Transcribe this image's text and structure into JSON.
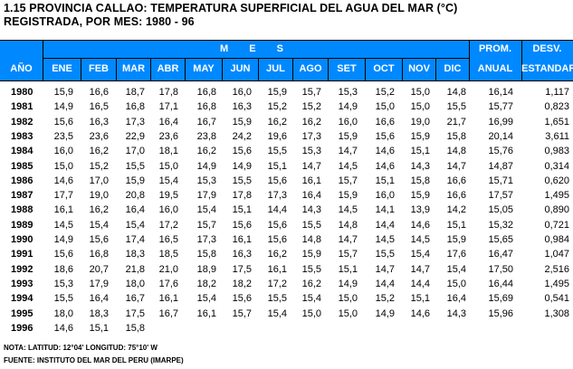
{
  "title": {
    "line1": "1.15  PROVINCIA CALLAO: TEMPERATURA SUPERFICIAL DEL AGUA DEL MAR (°C)",
    "line2": "REGISTRADA, POR MES: 1980 - 96"
  },
  "header": {
    "mes": "M E S",
    "ano": "AÑO",
    "months": [
      "ENE",
      "FEB",
      "MAR",
      "ABR",
      "MAY",
      "JUN",
      "JUL",
      "AGO",
      "SET",
      "OCT",
      "NOV",
      "DIC"
    ],
    "prom_1": "PROM.",
    "prom_2": "ANUAL",
    "desv_1": "DESV.",
    "desv_2": "ESTANDAR"
  },
  "rows": [
    {
      "year": "1980",
      "v": [
        "15,9",
        "16,6",
        "18,7",
        "17,8",
        "16,8",
        "16,0",
        "15,9",
        "15,7",
        "15,3",
        "15,2",
        "15,0",
        "14,8"
      ],
      "prom": "16,14",
      "desv": "1,117"
    },
    {
      "year": "1981",
      "v": [
        "14,9",
        "16,5",
        "16,8",
        "17,1",
        "16,8",
        "16,3",
        "15,2",
        "15,2",
        "14,9",
        "15,0",
        "15,0",
        "15,5"
      ],
      "prom": "15,77",
      "desv": "0,823"
    },
    {
      "year": "1982",
      "v": [
        "15,6",
        "16,3",
        "17,3",
        "16,4",
        "16,7",
        "15,9",
        "16,2",
        "16,2",
        "16,0",
        "16,6",
        "19,0",
        "21,7"
      ],
      "prom": "16,99",
      "desv": "1,651"
    },
    {
      "year": "1983",
      "v": [
        "23,5",
        "23,6",
        "22,9",
        "23,6",
        "23,8",
        "24,2",
        "19,6",
        "17,3",
        "15,9",
        "15,6",
        "15,9",
        "15,8"
      ],
      "prom": "20,14",
      "desv": "3,611"
    },
    {
      "year": "1984",
      "v": [
        "16,0",
        "16,2",
        "17,0",
        "18,1",
        "16,2",
        "15,6",
        "15,5",
        "15,3",
        "14,7",
        "14,6",
        "15,1",
        "14,8"
      ],
      "prom": "15,76",
      "desv": "0,983"
    },
    {
      "year": "1985",
      "v": [
        "15,0",
        "15,2",
        "15,5",
        "15,0",
        "14,9",
        "14,9",
        "15,1",
        "14,7",
        "14,5",
        "14,6",
        "14,3",
        "14,7"
      ],
      "prom": "14,87",
      "desv": "0,314"
    },
    {
      "year": "1986",
      "v": [
        "14,6",
        "17,0",
        "15,9",
        "15,4",
        "15,3",
        "15,5",
        "15,6",
        "16,1",
        "15,7",
        "15,1",
        "15,8",
        "16,6"
      ],
      "prom": "15,71",
      "desv": "0,620"
    },
    {
      "year": "1987",
      "v": [
        "17,7",
        "19,0",
        "20,8",
        "19,5",
        "17,9",
        "17,8",
        "17,3",
        "16,4",
        "15,9",
        "16,0",
        "15,9",
        "16,6"
      ],
      "prom": "17,57",
      "desv": "1,495"
    },
    {
      "year": "1988",
      "v": [
        "16,1",
        "16,2",
        "16,4",
        "16,0",
        "15,4",
        "15,1",
        "14,4",
        "14,3",
        "14,5",
        "14,1",
        "13,9",
        "14,2"
      ],
      "prom": "15,05",
      "desv": "0,890"
    },
    {
      "year": "1989",
      "v": [
        "14,5",
        "15,4",
        "15,4",
        "17,2",
        "15,7",
        "15,6",
        "15,6",
        "15,5",
        "14,8",
        "14,4",
        "14,6",
        "15,1"
      ],
      "prom": "15,32",
      "desv": "0,721"
    },
    {
      "year": "1990",
      "v": [
        "14,9",
        "15,6",
        "17,4",
        "16,5",
        "17,3",
        "16,1",
        "15,6",
        "14,8",
        "14,7",
        "14,5",
        "14,5",
        "15,9"
      ],
      "prom": "15,65",
      "desv": "0,984"
    },
    {
      "year": "1991",
      "v": [
        "15,6",
        "16,8",
        "18,3",
        "18,5",
        "15,8",
        "16,3",
        "16,2",
        "15,9",
        "15,7",
        "15,5",
        "15,4",
        "17,6"
      ],
      "prom": "16,47",
      "desv": "1,047"
    },
    {
      "year": "1992",
      "v": [
        "18,6",
        "20,7",
        "21,8",
        "21,0",
        "18,9",
        "17,5",
        "16,1",
        "15,5",
        "15,1",
        "14,7",
        "14,7",
        "15,4"
      ],
      "prom": "17,50",
      "desv": "2,516"
    },
    {
      "year": "1993",
      "v": [
        "15,3",
        "17,9",
        "18,0",
        "17,6",
        "18,2",
        "18,2",
        "17,2",
        "16,2",
        "14,9",
        "14,4",
        "14,4",
        "15,0"
      ],
      "prom": "16,44",
      "desv": "1,495"
    },
    {
      "year": "1994",
      "v": [
        "15,5",
        "16,4",
        "16,7",
        "16,1",
        "15,4",
        "15,6",
        "15,5",
        "15,4",
        "15,0",
        "15,2",
        "15,1",
        "16,4"
      ],
      "prom": "15,69",
      "desv": "0,541"
    },
    {
      "year": "1995",
      "v": [
        "18,0",
        "18,3",
        "17,5",
        "16,7",
        "16,1",
        "15,7",
        "15,4",
        "15,0",
        "15,0",
        "14,9",
        "14,6",
        "14,3"
      ],
      "prom": "15,96",
      "desv": "1,308"
    },
    {
      "year": "1996",
      "v": [
        "14,6",
        "15,1",
        "15,8",
        "",
        "",
        "",
        "",
        "",
        "",
        "",
        "",
        ""
      ],
      "prom": "",
      "desv": ""
    }
  ],
  "notes": {
    "note": "NOTA: LATITUD: 12°04'          LONGITUD: 75°10' W",
    "source": "FUENTE: INSTITUTO DEL MAR DEL PERU (IMARPE)"
  },
  "colors": {
    "header_bg": "#0088ff",
    "header_text": "#ffffff"
  }
}
